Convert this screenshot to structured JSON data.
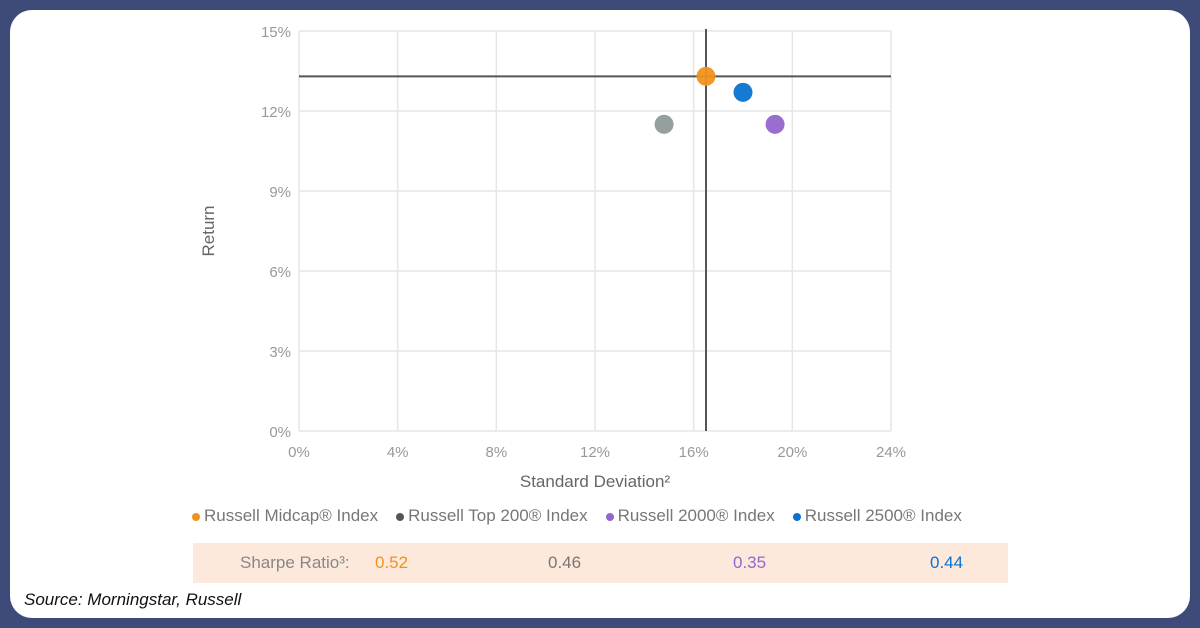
{
  "chart_data": {
    "type": "scatter",
    "xlabel": "Standard Deviation²",
    "ylabel": "Return",
    "xlim": [
      0,
      24
    ],
    "ylim": [
      0,
      15
    ],
    "xticks": [
      "0%",
      "4%",
      "8%",
      "12%",
      "16%",
      "20%",
      "24%"
    ],
    "yticks": [
      "0%",
      "3%",
      "6%",
      "9%",
      "12%",
      "15%"
    ],
    "grid": true,
    "legend_position": "bottom",
    "series": [
      {
        "name": "Russell Midcap® Index",
        "x": 16.5,
        "y": 13.3,
        "color": "#f0921e",
        "sharpe": "0.52"
      },
      {
        "name": "Russell Top 200® Index",
        "x": 14.8,
        "y": 11.5,
        "color": "#8f9a99",
        "legend_color": "#555555",
        "sharpe": "0.46"
      },
      {
        "name": "Russell 2000® Index",
        "x": 19.3,
        "y": 11.5,
        "color": "#9566cf",
        "sharpe": "0.35"
      },
      {
        "name": "Russell 2500® Index",
        "x": 18.0,
        "y": 12.7,
        "color": "#0a72d0",
        "sharpe": "0.44"
      }
    ],
    "crosshair": {
      "x": 16.5,
      "y": 13.3
    }
  },
  "sharpe_label": "Sharpe Ratio³:",
  "source": "Source: Morningstar, Russell"
}
